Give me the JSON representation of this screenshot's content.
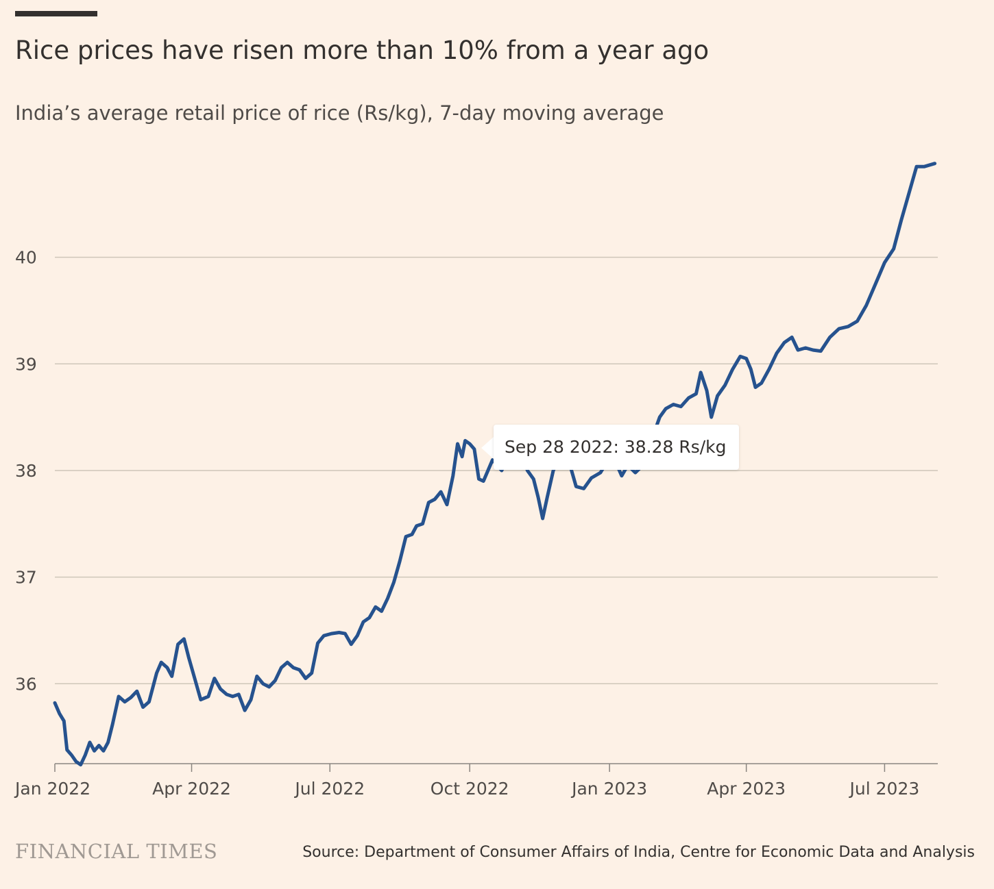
{
  "header": {
    "title": "Rice prices have risen more than 10% from a year ago",
    "subtitle": "India’s average retail price of rice (Rs/kg), 7-day moving average"
  },
  "tooltip": {
    "text": "Sep 28 2022: 38.28 Rs/kg",
    "date": "2022-09-28",
    "value": 38.28
  },
  "footer": {
    "logo": "FINANCIAL TIMES",
    "source": "Source: Department of Consumer Affairs of India, Centre for Economic Data and Analysis"
  },
  "colors": {
    "background": "#fdf1e6",
    "line": "#26528e",
    "grid": "#cec6b9",
    "text": "#33302e"
  },
  "chart_data": {
    "type": "line",
    "title": "Rice prices have risen more than 10% from a year ago",
    "subtitle": "India’s average retail price of rice (Rs/kg), 7-day moving average",
    "xlabel": "",
    "ylabel": "",
    "x_range": [
      "2022-01-01",
      "2023-08-05"
    ],
    "ylim": [
      35.25,
      41
    ],
    "y_ticks": [
      36,
      37,
      38,
      39,
      40
    ],
    "x_ticks": [
      {
        "date": "2022-01-01",
        "label": "Jan 2022"
      },
      {
        "date": "2022-04-01",
        "label": "Apr 2022"
      },
      {
        "date": "2022-07-01",
        "label": "Jul 2022"
      },
      {
        "date": "2022-10-01",
        "label": "Oct 2022"
      },
      {
        "date": "2023-01-01",
        "label": "Jan 2023"
      },
      {
        "date": "2023-04-01",
        "label": "Apr 2023"
      },
      {
        "date": "2023-07-01",
        "label": "Jul 2023"
      }
    ],
    "grid": true,
    "legend": "none",
    "series": [
      {
        "points": [
          [
            "2022-01-01",
            35.82
          ],
          [
            "2022-01-04",
            35.72
          ],
          [
            "2022-01-07",
            35.65
          ],
          [
            "2022-01-09",
            35.38
          ],
          [
            "2022-01-12",
            35.33
          ],
          [
            "2022-01-15",
            35.27
          ],
          [
            "2022-01-18",
            35.24
          ],
          [
            "2022-01-21",
            35.33
          ],
          [
            "2022-01-24",
            35.45
          ],
          [
            "2022-01-27",
            35.37
          ],
          [
            "2022-01-30",
            35.42
          ],
          [
            "2022-02-02",
            35.37
          ],
          [
            "2022-02-05",
            35.45
          ],
          [
            "2022-02-08",
            35.62
          ],
          [
            "2022-02-12",
            35.88
          ],
          [
            "2022-02-16",
            35.83
          ],
          [
            "2022-02-20",
            35.87
          ],
          [
            "2022-02-24",
            35.93
          ],
          [
            "2022-02-28",
            35.78
          ],
          [
            "2022-03-04",
            35.83
          ],
          [
            "2022-03-09",
            36.1
          ],
          [
            "2022-03-12",
            36.2
          ],
          [
            "2022-03-16",
            36.15
          ],
          [
            "2022-03-19",
            36.07
          ],
          [
            "2022-03-23",
            36.37
          ],
          [
            "2022-03-27",
            36.42
          ],
          [
            "2022-03-30",
            36.25
          ],
          [
            "2022-04-03",
            36.05
          ],
          [
            "2022-04-07",
            35.85
          ],
          [
            "2022-04-12",
            35.88
          ],
          [
            "2022-04-16",
            36.05
          ],
          [
            "2022-04-20",
            35.95
          ],
          [
            "2022-04-24",
            35.9
          ],
          [
            "2022-04-28",
            35.88
          ],
          [
            "2022-05-02",
            35.9
          ],
          [
            "2022-05-06",
            35.75
          ],
          [
            "2022-05-10",
            35.85
          ],
          [
            "2022-05-14",
            36.07
          ],
          [
            "2022-05-18",
            36.0
          ],
          [
            "2022-05-22",
            35.97
          ],
          [
            "2022-05-26",
            36.03
          ],
          [
            "2022-05-30",
            36.15
          ],
          [
            "2022-06-03",
            36.2
          ],
          [
            "2022-06-07",
            36.15
          ],
          [
            "2022-06-11",
            36.13
          ],
          [
            "2022-06-15",
            36.05
          ],
          [
            "2022-06-19",
            36.1
          ],
          [
            "2022-06-23",
            36.38
          ],
          [
            "2022-06-27",
            36.45
          ],
          [
            "2022-07-02",
            36.47
          ],
          [
            "2022-07-07",
            36.48
          ],
          [
            "2022-07-11",
            36.47
          ],
          [
            "2022-07-15",
            36.37
          ],
          [
            "2022-07-19",
            36.45
          ],
          [
            "2022-07-23",
            36.58
          ],
          [
            "2022-07-27",
            36.62
          ],
          [
            "2022-07-31",
            36.72
          ],
          [
            "2022-08-04",
            36.68
          ],
          [
            "2022-08-08",
            36.8
          ],
          [
            "2022-08-12",
            36.95
          ],
          [
            "2022-08-16",
            37.15
          ],
          [
            "2022-08-20",
            37.38
          ],
          [
            "2022-08-24",
            37.4
          ],
          [
            "2022-08-27",
            37.48
          ],
          [
            "2022-08-31",
            37.5
          ],
          [
            "2022-09-04",
            37.7
          ],
          [
            "2022-09-08",
            37.73
          ],
          [
            "2022-09-12",
            37.8
          ],
          [
            "2022-09-16",
            37.68
          ],
          [
            "2022-09-20",
            37.95
          ],
          [
            "2022-09-23",
            38.25
          ],
          [
            "2022-09-26",
            38.13
          ],
          [
            "2022-09-28",
            38.28
          ],
          [
            "2022-10-01",
            38.25
          ],
          [
            "2022-10-04",
            38.2
          ],
          [
            "2022-10-07",
            37.92
          ],
          [
            "2022-10-10",
            37.9
          ],
          [
            "2022-10-16",
            38.1
          ],
          [
            "2022-10-22",
            38.0
          ],
          [
            "2022-10-28",
            38.18
          ],
          [
            "2022-11-03",
            38.2
          ],
          [
            "2022-11-08",
            38.0
          ],
          [
            "2022-11-12",
            37.92
          ],
          [
            "2022-11-15",
            37.75
          ],
          [
            "2022-11-18",
            37.55
          ],
          [
            "2022-11-21",
            37.75
          ],
          [
            "2022-11-25",
            38.0
          ],
          [
            "2022-11-30",
            38.15
          ],
          [
            "2022-12-05",
            38.1
          ],
          [
            "2022-12-10",
            37.85
          ],
          [
            "2022-12-15",
            37.83
          ],
          [
            "2022-12-20",
            37.93
          ],
          [
            "2022-12-26",
            37.98
          ],
          [
            "2023-01-01",
            38.12
          ],
          [
            "2023-01-05",
            38.08
          ],
          [
            "2023-01-09",
            37.95
          ],
          [
            "2023-01-13",
            38.05
          ],
          [
            "2023-01-18",
            37.98
          ],
          [
            "2023-01-23",
            38.05
          ],
          [
            "2023-01-29",
            38.3
          ],
          [
            "2023-02-03",
            38.5
          ],
          [
            "2023-02-07",
            38.58
          ],
          [
            "2023-02-12",
            38.62
          ],
          [
            "2023-02-17",
            38.6
          ],
          [
            "2023-02-22",
            38.68
          ],
          [
            "2023-02-27",
            38.72
          ],
          [
            "2023-03-02",
            38.92
          ],
          [
            "2023-03-06",
            38.75
          ],
          [
            "2023-03-09",
            38.5
          ],
          [
            "2023-03-13",
            38.7
          ],
          [
            "2023-03-18",
            38.8
          ],
          [
            "2023-03-23",
            38.95
          ],
          [
            "2023-03-28",
            39.07
          ],
          [
            "2023-04-01",
            39.05
          ],
          [
            "2023-04-04",
            38.95
          ],
          [
            "2023-04-07",
            38.78
          ],
          [
            "2023-04-11",
            38.82
          ],
          [
            "2023-04-16",
            38.95
          ],
          [
            "2023-04-21",
            39.1
          ],
          [
            "2023-04-26",
            39.2
          ],
          [
            "2023-05-01",
            39.25
          ],
          [
            "2023-05-05",
            39.13
          ],
          [
            "2023-05-10",
            39.15
          ],
          [
            "2023-05-15",
            39.13
          ],
          [
            "2023-05-20",
            39.12
          ],
          [
            "2023-05-26",
            39.25
          ],
          [
            "2023-06-01",
            39.33
          ],
          [
            "2023-06-07",
            39.35
          ],
          [
            "2023-06-13",
            39.4
          ],
          [
            "2023-06-19",
            39.55
          ],
          [
            "2023-06-25",
            39.75
          ],
          [
            "2023-07-01",
            39.95
          ],
          [
            "2023-07-07",
            40.08
          ],
          [
            "2023-07-12",
            40.35
          ],
          [
            "2023-07-17",
            40.6
          ],
          [
            "2023-07-22",
            40.85
          ],
          [
            "2023-07-27",
            40.85
          ],
          [
            "2023-08-03",
            40.88
          ]
        ]
      }
    ]
  }
}
